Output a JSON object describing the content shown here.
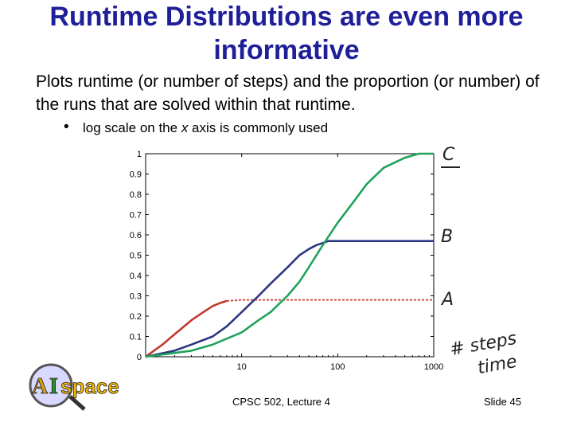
{
  "slide": {
    "title": "Runtime Distributions are even more informative",
    "body": "Plots runtime (or number of steps) and the proportion (or number) of the runs that are solved within that runtime.",
    "bullet": {
      "prefix": "log scale on the ",
      "var": "x",
      "suffix": " axis is commonly used"
    },
    "annotations": {
      "c": "C",
      "b": "B",
      "a": "A",
      "steps": "# steps",
      "time": "time"
    },
    "logo": {
      "a": "A",
      "i": "I",
      "space": "space"
    },
    "footer": {
      "lecture": "CPSC 502, Lecture 4",
      "slide_no": "Slide 45"
    }
  },
  "chart_data": {
    "type": "line",
    "x_scale": "log",
    "xlim": [
      1,
      1000
    ],
    "ylim": [
      0,
      1
    ],
    "x_ticks": [
      10,
      100,
      1000
    ],
    "x_tick_labels": [
      "10",
      "100",
      "1000"
    ],
    "y_ticks": [
      0,
      0.1,
      0.2,
      0.3,
      0.4,
      0.5,
      0.6,
      0.7,
      0.8,
      0.9,
      1
    ],
    "y_tick_labels": [
      "0",
      "0.1",
      "0.2",
      "0.3",
      "0.4",
      "0.5",
      "0.6",
      "0.7",
      "0.8",
      "0.9",
      "1"
    ],
    "grid": false,
    "series": [
      {
        "name": "A",
        "color": "#c0392b",
        "dashed_after": 7,
        "x": [
          1,
          1.5,
          2,
          3,
          4,
          5,
          6,
          7,
          10,
          30,
          100,
          1000
        ],
        "y": [
          0,
          0.06,
          0.11,
          0.18,
          0.22,
          0.25,
          0.265,
          0.275,
          0.28,
          0.28,
          0.28,
          0.28
        ]
      },
      {
        "name": "B",
        "color": "#2c3580",
        "x": [
          1,
          2,
          3,
          5,
          7,
          10,
          15,
          20,
          30,
          40,
          50,
          60,
          70,
          80,
          100,
          1000
        ],
        "y": [
          0,
          0.03,
          0.06,
          0.1,
          0.15,
          0.22,
          0.3,
          0.36,
          0.44,
          0.5,
          0.53,
          0.55,
          0.56,
          0.57,
          0.57,
          0.57
        ]
      },
      {
        "name": "C",
        "color": "#1fa35a",
        "x": [
          1,
          3,
          5,
          10,
          15,
          20,
          30,
          40,
          50,
          70,
          100,
          150,
          200,
          300,
          500,
          700,
          1000
        ],
        "y": [
          0,
          0.03,
          0.06,
          0.12,
          0.18,
          0.22,
          0.3,
          0.37,
          0.44,
          0.55,
          0.66,
          0.77,
          0.85,
          0.93,
          0.98,
          1.0,
          1.0
        ]
      }
    ]
  }
}
